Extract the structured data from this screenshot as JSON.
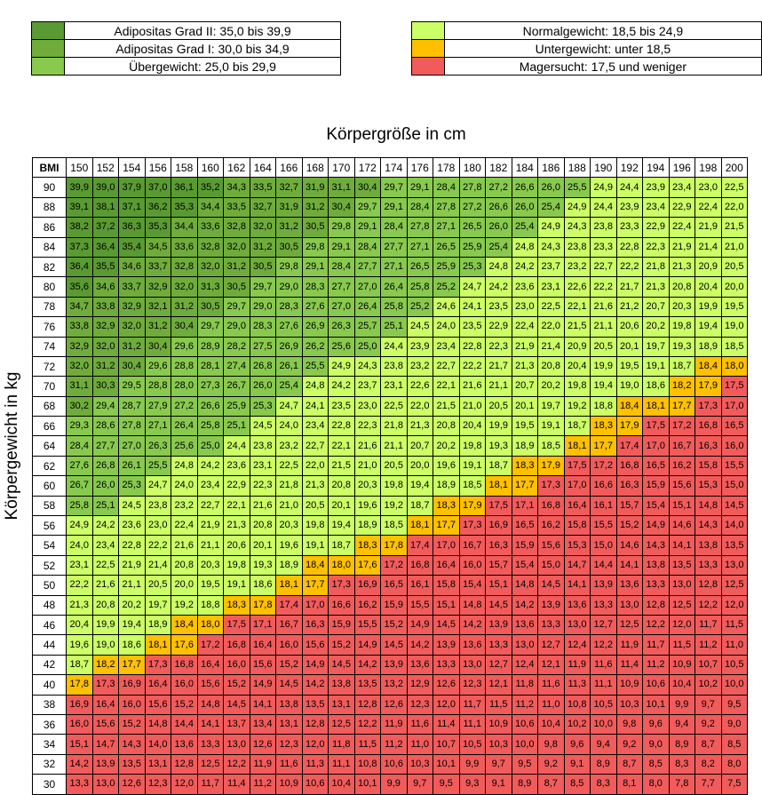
{
  "colors": {
    "adipositas_2": "#5a9a32",
    "adipositas_1": "#6fac3c",
    "uebergewicht": "#88c94e",
    "normal": "#ccff66",
    "untergewicht": "#ffc000",
    "magersucht": "#f25b5b"
  },
  "legend_left": [
    {
      "label": "Adipositas Grad II: 35,0 bis 39,9",
      "color": "#5a9a32"
    },
    {
      "label": "Adipositas Grad I: 30,0 bis 34,9",
      "color": "#6fac3c"
    },
    {
      "label": "Übergewicht: 25,0 bis 29,9",
      "color": "#88c94e"
    }
  ],
  "legend_right": [
    {
      "label": "Normalgewicht: 18,5 bis 24,9",
      "color": "#ccff66"
    },
    {
      "label": "Untergewicht: unter 18,5",
      "color": "#ffc000"
    },
    {
      "label": "Magersucht: 17,5 und weniger",
      "color": "#f25b5b"
    }
  ],
  "chart_data": {
    "type": "table",
    "xlabel": "Körpergröße in cm",
    "ylabel": "Körpergewicht in kg",
    "corner": "BMI",
    "columns": [
      "150",
      "152",
      "154",
      "156",
      "158",
      "160",
      "162",
      "164",
      "166",
      "168",
      "170",
      "172",
      "174",
      "176",
      "178",
      "180",
      "182",
      "184",
      "186",
      "188",
      "190",
      "192",
      "194",
      "196",
      "198",
      "200"
    ],
    "rows": [
      {
        "kg": "90",
        "values": [
          "39,9",
          "39,0",
          "37,9",
          "37,0",
          "36,1",
          "35,2",
          "34,3",
          "33,5",
          "32,7",
          "31,9",
          "31,1",
          "30,4",
          "29,7",
          "29,1",
          "28,4",
          "27,8",
          "27,2",
          "26,6",
          "26,0",
          "25,5",
          "24,9",
          "24,4",
          "23,9",
          "23,4",
          "23,0",
          "22,5"
        ]
      },
      {
        "kg": "88",
        "values": [
          "39,1",
          "38,1",
          "37,1",
          "36,2",
          "35,3",
          "34,4",
          "33,5",
          "32,7",
          "31,9",
          "31,2",
          "30,4",
          "29,7",
          "29,1",
          "28,4",
          "27,8",
          "27,2",
          "26,6",
          "26,0",
          "25,4",
          "24,9",
          "24,4",
          "23,9",
          "23,4",
          "22,9",
          "22,4",
          "22,0"
        ]
      },
      {
        "kg": "86",
        "values": [
          "38,2",
          "37,2",
          "36,3",
          "35,3",
          "34,4",
          "33,6",
          "32,8",
          "32,0",
          "31,2",
          "30,5",
          "29,8",
          "29,1",
          "28,4",
          "27,8",
          "27,1",
          "26,5",
          "26,0",
          "25,4",
          "24,9",
          "24,3",
          "23,8",
          "23,3",
          "22,9",
          "22,4",
          "21,9",
          "21,5"
        ]
      },
      {
        "kg": "84",
        "values": [
          "37,3",
          "36,4",
          "35,4",
          "34,5",
          "33,6",
          "32,8",
          "32,0",
          "31,2",
          "30,5",
          "29,8",
          "29,1",
          "28,4",
          "27,7",
          "27,1",
          "26,5",
          "25,9",
          "25,4",
          "24,8",
          "24,3",
          "23,8",
          "23,3",
          "22,8",
          "22,3",
          "21,9",
          "21,4",
          "21,0"
        ]
      },
      {
        "kg": "82",
        "values": [
          "36,4",
          "35,5",
          "34,6",
          "33,7",
          "32,8",
          "32,0",
          "31,2",
          "30,5",
          "29,8",
          "29,1",
          "28,4",
          "27,7",
          "27,1",
          "26,5",
          "25,9",
          "25,3",
          "24,8",
          "24,2",
          "23,7",
          "23,2",
          "22,7",
          "22,2",
          "21,8",
          "21,3",
          "20,9",
          "20,5"
        ]
      },
      {
        "kg": "80",
        "values": [
          "35,6",
          "34,6",
          "33,7",
          "32,9",
          "32,0",
          "31,3",
          "30,5",
          "29,7",
          "29,0",
          "28,3",
          "27,7",
          "27,0",
          "26,4",
          "25,8",
          "25,2",
          "24,7",
          "24,2",
          "23,6",
          "23,1",
          "22,6",
          "22,2",
          "21,7",
          "21,3",
          "20,8",
          "20,4",
          "20,0"
        ]
      },
      {
        "kg": "78",
        "values": [
          "34,7",
          "33,8",
          "32,9",
          "32,1",
          "31,2",
          "30,5",
          "29,7",
          "29,0",
          "28,3",
          "27,6",
          "27,0",
          "26,4",
          "25,8",
          "25,2",
          "24,6",
          "24,1",
          "23,5",
          "23,0",
          "22,5",
          "22,1",
          "21,6",
          "21,2",
          "20,7",
          "20,3",
          "19,9",
          "19,5"
        ]
      },
      {
        "kg": "76",
        "values": [
          "33,8",
          "32,9",
          "32,0",
          "31,2",
          "30,4",
          "29,7",
          "29,0",
          "28,3",
          "27,6",
          "26,9",
          "26,3",
          "25,7",
          "25,1",
          "24,5",
          "24,0",
          "23,5",
          "22,9",
          "22,4",
          "22,0",
          "21,5",
          "21,1",
          "20,6",
          "20,2",
          "19,8",
          "19,4",
          "19,0"
        ]
      },
      {
        "kg": "74",
        "values": [
          "32,9",
          "32,0",
          "31,2",
          "30,4",
          "29,6",
          "28,9",
          "28,2",
          "27,5",
          "26,9",
          "26,2",
          "25,6",
          "25,0",
          "24,4",
          "23,9",
          "23,4",
          "22,8",
          "22,3",
          "21,9",
          "21,4",
          "20,9",
          "20,5",
          "20,1",
          "19,7",
          "19,3",
          "18,9",
          "18,5"
        ]
      },
      {
        "kg": "72",
        "values": [
          "32,0",
          "31,2",
          "30,4",
          "29,6",
          "28,8",
          "28,1",
          "27,4",
          "26,8",
          "26,1",
          "25,5",
          "24,9",
          "24,3",
          "23,8",
          "23,2",
          "22,7",
          "22,2",
          "21,7",
          "21,3",
          "20,8",
          "20,4",
          "19,9",
          "19,5",
          "19,1",
          "18,7",
          "18,4",
          "18,0"
        ]
      },
      {
        "kg": "70",
        "values": [
          "31,1",
          "30,3",
          "29,5",
          "28,8",
          "28,0",
          "27,3",
          "26,7",
          "26,0",
          "25,4",
          "24,8",
          "24,2",
          "23,7",
          "23,1",
          "22,6",
          "22,1",
          "21,6",
          "21,1",
          "20,7",
          "20,2",
          "19,8",
          "19,4",
          "19,0",
          "18,6",
          "18,2",
          "17,9",
          "17,5"
        ]
      },
      {
        "kg": "68",
        "values": [
          "30,2",
          "29,4",
          "28,7",
          "27,9",
          "27,2",
          "26,6",
          "25,9",
          "25,3",
          "24,7",
          "24,1",
          "23,5",
          "23,0",
          "22,5",
          "22,0",
          "21,5",
          "21,0",
          "20,5",
          "20,1",
          "19,7",
          "19,2",
          "18,8",
          "18,4",
          "18,1",
          "17,7",
          "17,3",
          "17,0"
        ]
      },
      {
        "kg": "66",
        "values": [
          "29,3",
          "28,6",
          "27,8",
          "27,1",
          "26,4",
          "25,8",
          "25,1",
          "24,5",
          "24,0",
          "23,4",
          "22,8",
          "22,3",
          "21,8",
          "21,3",
          "20,8",
          "20,4",
          "19,9",
          "19,5",
          "19,1",
          "18,7",
          "18,3",
          "17,9",
          "17,5",
          "17,2",
          "16,8",
          "16,5"
        ]
      },
      {
        "kg": "64",
        "values": [
          "28,4",
          "27,7",
          "27,0",
          "26,3",
          "25,6",
          "25,0",
          "24,4",
          "23,8",
          "23,2",
          "22,7",
          "22,1",
          "21,6",
          "21,1",
          "20,7",
          "20,2",
          "19,8",
          "19,3",
          "18,9",
          "18,5",
          "18,1",
          "17,7",
          "17,4",
          "17,0",
          "16,7",
          "16,3",
          "16,0"
        ]
      },
      {
        "kg": "62",
        "values": [
          "27,6",
          "26,8",
          "26,1",
          "25,5",
          "24,8",
          "24,2",
          "23,6",
          "23,1",
          "22,5",
          "22,0",
          "21,5",
          "21,0",
          "20,5",
          "20,0",
          "19,6",
          "19,1",
          "18,7",
          "18,3",
          "17,9",
          "17,5",
          "17,2",
          "16,8",
          "16,5",
          "16,2",
          "15,8",
          "15,5"
        ]
      },
      {
        "kg": "60",
        "values": [
          "26,7",
          "26,0",
          "25,3",
          "24,7",
          "24,0",
          "23,4",
          "22,9",
          "22,3",
          "21,8",
          "21,3",
          "20,8",
          "20,3",
          "19,8",
          "19,4",
          "18,9",
          "18,5",
          "18,1",
          "17,7",
          "17,3",
          "17,0",
          "16,6",
          "16,3",
          "15,9",
          "15,6",
          "15,3",
          "15,0"
        ]
      },
      {
        "kg": "58",
        "values": [
          "25,8",
          "25,1",
          "24,5",
          "23,8",
          "23,2",
          "22,7",
          "22,1",
          "21,6",
          "21,0",
          "20,5",
          "20,1",
          "19,6",
          "19,2",
          "18,7",
          "18,3",
          "17,9",
          "17,5",
          "17,1",
          "16,8",
          "16,4",
          "16,1",
          "15,7",
          "15,4",
          "15,1",
          "14,8",
          "14,5"
        ]
      },
      {
        "kg": "56",
        "values": [
          "24,9",
          "24,2",
          "23,6",
          "23,0",
          "22,4",
          "21,9",
          "21,3",
          "20,8",
          "20,3",
          "19,8",
          "19,4",
          "18,9",
          "18,5",
          "18,1",
          "17,7",
          "17,3",
          "16,9",
          "16,5",
          "16,2",
          "15,8",
          "15,5",
          "15,2",
          "14,9",
          "14,6",
          "14,3",
          "14,0"
        ]
      },
      {
        "kg": "54",
        "values": [
          "24,0",
          "23,4",
          "22,8",
          "22,2",
          "21,6",
          "21,1",
          "20,6",
          "20,1",
          "19,6",
          "19,1",
          "18,7",
          "18,3",
          "17,8",
          "17,4",
          "17,0",
          "16,7",
          "16,3",
          "15,9",
          "15,6",
          "15,3",
          "15,0",
          "14,6",
          "14,3",
          "14,1",
          "13,8",
          "13,5"
        ]
      },
      {
        "kg": "52",
        "values": [
          "23,1",
          "22,5",
          "21,9",
          "21,4",
          "20,8",
          "20,3",
          "19,8",
          "19,3",
          "18,9",
          "18,4",
          "18,0",
          "17,6",
          "17,2",
          "16,8",
          "16,4",
          "16,0",
          "15,7",
          "15,4",
          "15,0",
          "14,7",
          "14,4",
          "14,1",
          "13,8",
          "13,5",
          "13,3",
          "13,0"
        ]
      },
      {
        "kg": "50",
        "values": [
          "22,2",
          "21,6",
          "21,1",
          "20,5",
          "20,0",
          "19,5",
          "19,1",
          "18,6",
          "18,1",
          "17,7",
          "17,3",
          "16,9",
          "16,5",
          "16,1",
          "15,8",
          "15,4",
          "15,1",
          "14,8",
          "14,5",
          "14,1",
          "13,9",
          "13,6",
          "13,3",
          "13,0",
          "12,8",
          "12,5"
        ]
      },
      {
        "kg": "48",
        "values": [
          "21,3",
          "20,8",
          "20,2",
          "19,7",
          "19,2",
          "18,8",
          "18,3",
          "17,8",
          "17,4",
          "17,0",
          "16,6",
          "16,2",
          "15,9",
          "15,5",
          "15,1",
          "14,8",
          "14,5",
          "14,2",
          "13,9",
          "13,6",
          "13,3",
          "13,0",
          "12,8",
          "12,5",
          "12,2",
          "12,0"
        ]
      },
      {
        "kg": "46",
        "values": [
          "20,4",
          "19,9",
          "19,4",
          "18,9",
          "18,4",
          "18,0",
          "17,5",
          "17,1",
          "16,7",
          "16,3",
          "15,9",
          "15,5",
          "15,2",
          "14,9",
          "14,5",
          "14,2",
          "13,9",
          "13,6",
          "13,3",
          "13,0",
          "12,7",
          "12,5",
          "12,2",
          "12,0",
          "11,7",
          "11,5"
        ]
      },
      {
        "kg": "44",
        "values": [
          "19,6",
          "19,0",
          "18,6",
          "18,1",
          "17,6",
          "17,2",
          "16,8",
          "16,4",
          "16,0",
          "15,6",
          "15,2",
          "14,9",
          "14,5",
          "14,2",
          "13,9",
          "13,6",
          "13,3",
          "13,0",
          "12,7",
          "12,4",
          "12,2",
          "11,9",
          "11,7",
          "11,5",
          "11,2",
          "11,0"
        ]
      },
      {
        "kg": "42",
        "values": [
          "18,7",
          "18,2",
          "17,7",
          "17,3",
          "16,8",
          "16,4",
          "16,0",
          "15,6",
          "15,2",
          "14,9",
          "14,5",
          "14,2",
          "13,9",
          "13,6",
          "13,3",
          "13,0",
          "12,7",
          "12,4",
          "12,1",
          "11,9",
          "11,6",
          "11,4",
          "11,2",
          "10,9",
          "10,7",
          "10,5"
        ]
      },
      {
        "kg": "40",
        "values": [
          "17,8",
          "17,3",
          "16,9",
          "16,4",
          "16,0",
          "15,6",
          "15,2",
          "14,9",
          "14,5",
          "14,2",
          "13,8",
          "13,5",
          "13,2",
          "12,9",
          "12,6",
          "12,3",
          "12,1",
          "11,8",
          "11,6",
          "11,3",
          "11,1",
          "10,9",
          "10,6",
          "10,4",
          "10,2",
          "10,0"
        ]
      },
      {
        "kg": "38",
        "values": [
          "16,9",
          "16,4",
          "16,0",
          "15,6",
          "15,2",
          "14,8",
          "14,5",
          "14,1",
          "13,8",
          "13,5",
          "13,1",
          "12,8",
          "12,6",
          "12,3",
          "12,0",
          "11,7",
          "11,5",
          "11,2",
          "11,0",
          "10,8",
          "10,5",
          "10,3",
          "10,1",
          "9,9",
          "9,7",
          "9,5"
        ]
      },
      {
        "kg": "36",
        "values": [
          "16,0",
          "15,6",
          "15,2",
          "14,8",
          "14,4",
          "14,1",
          "13,7",
          "13,4",
          "13,1",
          "12,8",
          "12,5",
          "12,2",
          "11,9",
          "11,6",
          "11,4",
          "11,1",
          "10,9",
          "10,6",
          "10,4",
          "10,2",
          "10,0",
          "9,8",
          "9,6",
          "9,4",
          "9,2",
          "9,0"
        ]
      },
      {
        "kg": "34",
        "values": [
          "15,1",
          "14,7",
          "14,3",
          "14,0",
          "13,6",
          "13,3",
          "13,0",
          "12,6",
          "12,3",
          "12,0",
          "11,8",
          "11,5",
          "11,2",
          "11,0",
          "10,7",
          "10,5",
          "10,3",
          "10,0",
          "9,8",
          "9,6",
          "9,4",
          "9,2",
          "9,0",
          "8,9",
          "8,7",
          "8,5"
        ]
      },
      {
        "kg": "32",
        "values": [
          "14,2",
          "13,9",
          "13,5",
          "13,1",
          "12,8",
          "12,5",
          "12,2",
          "11,9",
          "11,6",
          "11,3",
          "11,1",
          "10,8",
          "10,6",
          "10,3",
          "10,1",
          "9,9",
          "9,7",
          "9,5",
          "9,2",
          "9,1",
          "8,9",
          "8,7",
          "8,5",
          "8,3",
          "8,2",
          "8,0"
        ]
      },
      {
        "kg": "30",
        "values": [
          "13,3",
          "13,0",
          "12,6",
          "12,3",
          "12,0",
          "11,7",
          "11,4",
          "11,2",
          "10,9",
          "10,6",
          "10,4",
          "10,1",
          "9,9",
          "9,7",
          "9,5",
          "9,3",
          "9,1",
          "8,9",
          "8,7",
          "8,5",
          "8,3",
          "8,1",
          "8,0",
          "7,8",
          "7,7",
          "7,5"
        ]
      }
    ]
  }
}
